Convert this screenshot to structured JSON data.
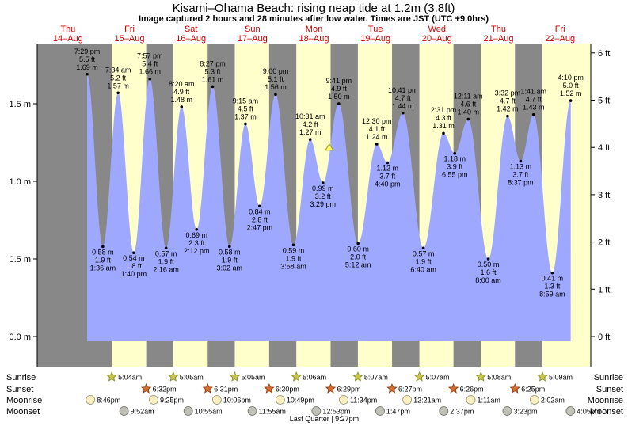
{
  "title": "Kisami–Ohama Beach: rising  neap tide at 1.2m (3.8ft)",
  "subtitle": "Image captured 2 hours and 28 minutes after low water. Times are JST (UTC +9.0hrs)",
  "colors": {
    "night": "#888888",
    "day": "#ffffcc",
    "water": "#9fa8ff",
    "dayText": "#cc0000",
    "sunIcon": "#c8c850",
    "sunsetIcon": "#d07030",
    "moonriseIcon": "#f8f0c0",
    "moonsetIcon": "#c0c0b8"
  },
  "chart_data": {
    "type": "area",
    "y_left_unit": "m",
    "y_right_unit": "ft",
    "ylim_m": [
      -0.1,
      1.9
    ],
    "y_left_ticks": [
      {
        "v": 0.0,
        "label": "0.0 m"
      },
      {
        "v": 0.5,
        "label": "0.5 m"
      },
      {
        "v": 1.0,
        "label": "1.0 m"
      },
      {
        "v": 1.5,
        "label": "1.5 m"
      }
    ],
    "y_right_ticks": [
      {
        "v": 0,
        "label": "0 ft"
      },
      {
        "v": 1,
        "label": "1 ft"
      },
      {
        "v": 2,
        "label": "2 ft"
      },
      {
        "v": 3,
        "label": "3 ft"
      },
      {
        "v": 4,
        "label": "4 ft"
      },
      {
        "v": 5,
        "label": "5 ft"
      },
      {
        "v": 6,
        "label": "6 ft"
      }
    ],
    "days": [
      {
        "dow": "Thu",
        "date": "14–Aug"
      },
      {
        "dow": "Fri",
        "date": "15–Aug"
      },
      {
        "dow": "Sat",
        "date": "16–Aug"
      },
      {
        "dow": "Sun",
        "date": "17–Aug"
      },
      {
        "dow": "Mon",
        "date": "18–Aug"
      },
      {
        "dow": "Tue",
        "date": "19–Aug"
      },
      {
        "dow": "Wed",
        "date": "20–Aug"
      },
      {
        "dow": "Thu",
        "date": "21–Aug"
      },
      {
        "dow": "Fri",
        "date": "22–Aug"
      }
    ],
    "daylight_hours": [
      {
        "rise": "5:04am",
        "set": "6:32pm"
      },
      {
        "rise": "5:05am",
        "set": "6:31pm"
      },
      {
        "rise": "5:05am",
        "set": "6:30pm"
      },
      {
        "rise": "5:06am",
        "set": "6:29pm"
      },
      {
        "rise": "5:07am",
        "set": "6:27pm"
      },
      {
        "rise": "5:07am",
        "set": "6:26pm"
      },
      {
        "rise": "5:08am",
        "set": "6:25pm"
      },
      {
        "rise": "5:09am",
        "set": ""
      }
    ],
    "tides": [
      {
        "kind": "high",
        "time": "7:29 pm",
        "ft": "5.5 ft",
        "m": "1.69 m",
        "h": 19.48,
        "v": 1.69
      },
      {
        "kind": "low",
        "time": "1:36 am",
        "ft": "1.9 ft",
        "m": "0.58 m",
        "h": 25.6,
        "v": 0.58
      },
      {
        "kind": "high",
        "time": "7:34 am",
        "ft": "5.2 ft",
        "m": "1.57 m",
        "h": 31.57,
        "v": 1.57
      },
      {
        "kind": "low",
        "time": "1:40 pm",
        "ft": "1.8 ft",
        "m": "0.54 m",
        "h": 37.67,
        "v": 0.54
      },
      {
        "kind": "high",
        "time": "7:57 pm",
        "ft": "5.4 ft",
        "m": "1.66 m",
        "h": 43.95,
        "v": 1.66
      },
      {
        "kind": "low",
        "time": "2:16 am",
        "ft": "1.9 ft",
        "m": "0.57 m",
        "h": 50.27,
        "v": 0.57
      },
      {
        "kind": "high",
        "time": "8:20 am",
        "ft": "4.9 ft",
        "m": "1.48 m",
        "h": 56.33,
        "v": 1.48
      },
      {
        "kind": "low",
        "time": "2:12 pm",
        "ft": "2.3 ft",
        "m": "0.69 m",
        "h": 62.2,
        "v": 0.69
      },
      {
        "kind": "high",
        "time": "8:27 pm",
        "ft": "5.3 ft",
        "m": "1.61 m",
        "h": 68.45,
        "v": 1.61
      },
      {
        "kind": "low",
        "time": "3:02 am",
        "ft": "1.9 ft",
        "m": "0.58 m",
        "h": 75.03,
        "v": 0.58
      },
      {
        "kind": "high",
        "time": "9:15 am",
        "ft": "4.5 ft",
        "m": "1.37 m",
        "h": 81.25,
        "v": 1.37
      },
      {
        "kind": "low",
        "time": "2:47 pm",
        "ft": "2.8 ft",
        "m": "0.84 m",
        "h": 86.78,
        "v": 0.84
      },
      {
        "kind": "high",
        "time": "9:00 pm",
        "ft": "5.1 ft",
        "m": "1.56 m",
        "h": 93.0,
        "v": 1.56
      },
      {
        "kind": "low",
        "time": "3:58 am",
        "ft": "1.9 ft",
        "m": "0.59 m",
        "h": 99.97,
        "v": 0.59
      },
      {
        "kind": "high",
        "time": "10:31 am",
        "ft": "4.2 ft",
        "m": "1.27 m",
        "h": 106.52,
        "v": 1.27
      },
      {
        "kind": "low",
        "time": "3:29 pm",
        "ft": "3.2 ft",
        "m": "0.99 m",
        "h": 111.48,
        "v": 0.99
      },
      {
        "kind": "high",
        "time": "9:41 pm",
        "ft": "4.9 ft",
        "m": "1.50 m",
        "h": 117.68,
        "v": 1.5
      },
      {
        "kind": "low",
        "time": "5:12 am",
        "ft": "2.0 ft",
        "m": "0.60 m",
        "h": 125.2,
        "v": 0.6
      },
      {
        "kind": "high",
        "time": "12:30 pm",
        "ft": "4.1 ft",
        "m": "1.24 m",
        "h": 132.5,
        "v": 1.24
      },
      {
        "kind": "low",
        "time": "4:40 pm",
        "ft": "3.7 ft",
        "m": "1.12 m",
        "h": 136.67,
        "v": 1.12
      },
      {
        "kind": "high",
        "time": "10:41 pm",
        "ft": "4.7 ft",
        "m": "1.44 m",
        "h": 142.68,
        "v": 1.44
      },
      {
        "kind": "low",
        "time": "6:40 am",
        "ft": "1.9 ft",
        "m": "0.57 m",
        "h": 150.67,
        "v": 0.57
      },
      {
        "kind": "high",
        "time": "2:31 pm",
        "ft": "4.3 ft",
        "m": "1.31 m",
        "h": 158.52,
        "v": 1.31
      },
      {
        "kind": "low",
        "time": "6:55 pm",
        "ft": "3.9 ft",
        "m": "1.18 m",
        "h": 162.92,
        "v": 1.18
      },
      {
        "kind": "high",
        "time": "12:11 am",
        "ft": "4.6 ft",
        "m": "1.40 m",
        "h": 168.18,
        "v": 1.4
      },
      {
        "kind": "low",
        "time": "8:00 am",
        "ft": "1.6 ft",
        "m": "0.50 m",
        "h": 176.0,
        "v": 0.5
      },
      {
        "kind": "high",
        "time": "3:32 pm",
        "ft": "4.7 ft",
        "m": "1.42 m",
        "h": 183.53,
        "v": 1.42
      },
      {
        "kind": "low",
        "time": "8:37 pm",
        "ft": "3.7 ft",
        "m": "1.13 m",
        "h": 188.62,
        "v": 1.13
      },
      {
        "kind": "high",
        "time": "1:41 am",
        "ft": "4.7 ft",
        "m": "1.43 m",
        "h": 193.68,
        "v": 1.43
      },
      {
        "kind": "low",
        "time": "8:59 am",
        "ft": "1.3 ft",
        "m": "0.41 m",
        "h": 200.98,
        "v": 0.41
      },
      {
        "kind": "high",
        "time": "4:10 pm",
        "ft": "5.0 ft",
        "m": "1.52 m",
        "h": 208.17,
        "v": 1.52
      }
    ],
    "current_marker": {
      "h": 114.0,
      "v": 1.2
    },
    "rows": [
      {
        "label": "Sunrise",
        "kind": "sunrise",
        "items": [
          {
            "h": 29.07,
            "t": "5:04am"
          },
          {
            "h": 53.08,
            "t": "5:05am"
          },
          {
            "h": 77.08,
            "t": "5:05am"
          },
          {
            "h": 101.1,
            "t": "5:06am"
          },
          {
            "h": 125.12,
            "t": "5:07am"
          },
          {
            "h": 149.12,
            "t": "5:07am"
          },
          {
            "h": 173.13,
            "t": "5:08am"
          },
          {
            "h": 197.15,
            "t": "5:09am"
          }
        ]
      },
      {
        "label": "Sunset",
        "kind": "sunset",
        "items": [
          {
            "h": 42.53,
            "t": "6:32pm"
          },
          {
            "h": 66.52,
            "t": "6:31pm"
          },
          {
            "h": 90.5,
            "t": "6:30pm"
          },
          {
            "h": 114.48,
            "t": "6:29pm"
          },
          {
            "h": 138.45,
            "t": "6:27pm"
          },
          {
            "h": 162.43,
            "t": "6:26pm"
          },
          {
            "h": 186.42,
            "t": "6:25pm"
          }
        ]
      },
      {
        "label": "Moonrise",
        "kind": "moonrise",
        "items": [
          {
            "h": 20.77,
            "t": "8:46pm"
          },
          {
            "h": 45.42,
            "t": "9:25pm"
          },
          {
            "h": 70.1,
            "t": "10:06pm"
          },
          {
            "h": 94.82,
            "t": "10:49pm"
          },
          {
            "h": 119.57,
            "t": "11:34pm"
          },
          {
            "h": 144.35,
            "t": "12:21am"
          },
          {
            "h": 169.18,
            "t": "1:11am"
          },
          {
            "h": 194.03,
            "t": "2:02am"
          }
        ]
      },
      {
        "label": "Moonset",
        "kind": "moonset",
        "items": [
          {
            "h": 33.87,
            "t": "9:52am"
          },
          {
            "h": 58.92,
            "t": "10:55am"
          },
          {
            "h": 83.92,
            "t": "11:55am"
          },
          {
            "h": 108.88,
            "t": "12:53pm"
          },
          {
            "h": 133.78,
            "t": "1:47pm"
          },
          {
            "h": 158.62,
            "t": "2:37pm"
          },
          {
            "h": 183.38,
            "t": "3:23pm"
          },
          {
            "h": 208.08,
            "t": "4:05pm"
          }
        ]
      }
    ],
    "moon_phase_note": "Last Quarter | 9:27pm"
  }
}
